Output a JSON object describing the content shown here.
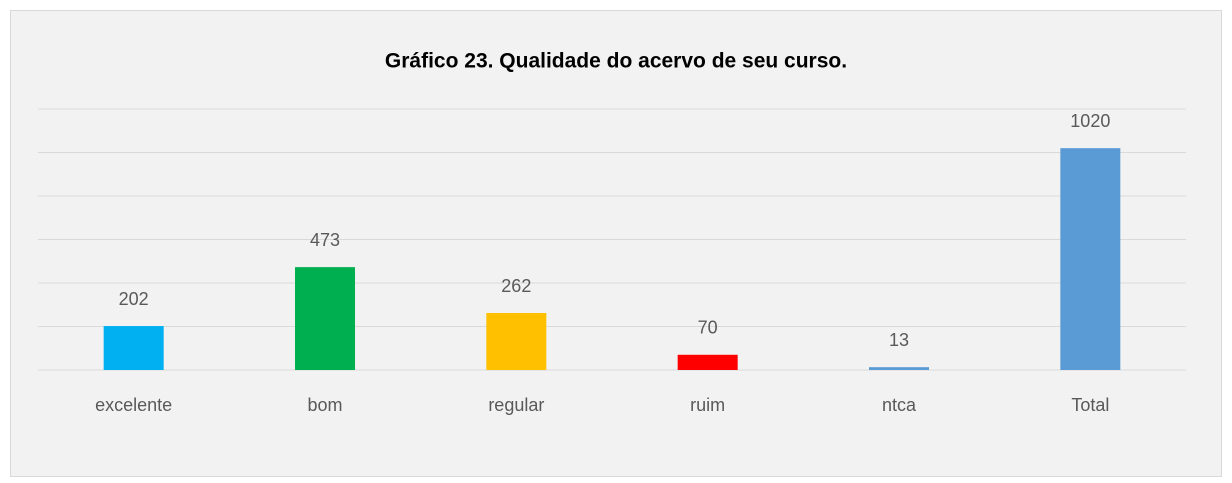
{
  "chart_data": {
    "type": "bar",
    "title": "Gráfico 23. Qualidade do acervo de seu curso.",
    "categories": [
      "excelente",
      "bom",
      "regular",
      "ruim",
      "ntca",
      "Total"
    ],
    "values": [
      202,
      473,
      262,
      70,
      13,
      1020
    ],
    "colors": [
      "#00b0f0",
      "#00b050",
      "#ffc000",
      "#ff0000",
      "#5b9bd5",
      "#5b9bd5"
    ],
    "ylim": [
      0,
      1200
    ],
    "yticks": [
      0,
      200,
      400,
      600,
      800,
      1000,
      1200
    ],
    "grid": true
  }
}
